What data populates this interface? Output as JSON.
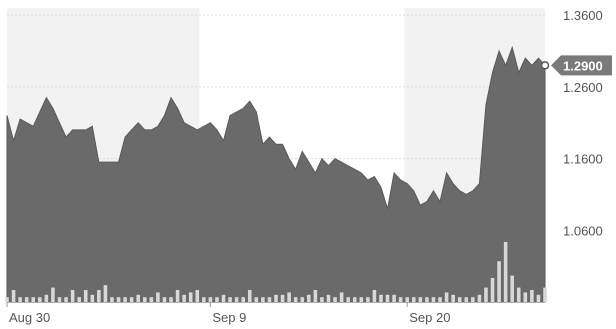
{
  "chart_data": {
    "type": "area",
    "title": "",
    "xlabel": "",
    "ylabel": "",
    "ylim": [
      0.96,
      1.37
    ],
    "y_ticks": [
      1.06,
      1.16,
      1.26,
      1.36
    ],
    "y_tick_labels": [
      "1.0600",
      "1.1600",
      "1.2600",
      "1.3600"
    ],
    "x_tick_labels": [
      "Aug 30",
      "Sep 9",
      "Sep 20"
    ],
    "grid": "horizontal",
    "y_axis_position": "right",
    "colors": {
      "area": "#6a6a6a",
      "shade": "#f2f2f2",
      "badge": "#7a7a7a",
      "grid": "#dcdcdc"
    },
    "last_value": 1.29,
    "last_value_label": "1.2900",
    "series": [
      {
        "values": [
          1.22,
          1.185,
          1.215,
          1.21,
          1.205,
          1.225,
          1.245,
          1.23,
          1.21,
          1.19,
          1.2,
          1.2,
          1.2,
          1.205,
          1.155,
          1.155,
          1.155,
          1.155,
          1.19,
          1.2,
          1.21,
          1.2,
          1.2,
          1.205,
          1.22,
          1.245,
          1.23,
          1.21,
          1.205,
          1.2,
          1.205,
          1.21,
          1.2,
          1.185,
          1.22,
          1.225,
          1.23,
          1.24,
          1.225,
          1.18,
          1.19,
          1.18,
          1.18,
          1.16,
          1.145,
          1.17,
          1.155,
          1.14,
          1.16,
          1.15,
          1.16,
          1.155,
          1.15,
          1.145,
          1.14,
          1.13,
          1.135,
          1.12,
          1.09,
          1.14,
          1.13,
          1.125,
          1.115,
          1.095,
          1.1,
          1.115,
          1.1,
          1.14,
          1.125,
          1.115,
          1.11,
          1.115,
          1.125,
          1.235,
          1.28,
          1.31,
          1.29,
          1.315,
          1.28,
          1.3,
          1.29,
          1.3,
          1.29
        ]
      }
    ],
    "volume": [
      0.02,
      0.05,
      0.02,
      0.02,
      0.02,
      0.02,
      0.03,
      0.06,
      0.02,
      0.02,
      0.05,
      0.02,
      0.05,
      0.03,
      0.05,
      0.07,
      0.02,
      0.02,
      0.02,
      0.02,
      0.03,
      0.02,
      0.02,
      0.04,
      0.02,
      0.02,
      0.05,
      0.03,
      0.04,
      0.05,
      0.02,
      0.02,
      0.02,
      0.03,
      0.02,
      0.02,
      0.02,
      0.05,
      0.02,
      0.02,
      0.02,
      0.03,
      0.03,
      0.04,
      0.02,
      0.02,
      0.03,
      0.05,
      0.02,
      0.03,
      0.02,
      0.04,
      0.02,
      0.02,
      0.02,
      0.02,
      0.05,
      0.03,
      0.03,
      0.03,
      0.02,
      0.02,
      0.02,
      0.02,
      0.02,
      0.02,
      0.02,
      0.04,
      0.03,
      0.02,
      0.02,
      0.02,
      0.03,
      0.06,
      0.1,
      0.17,
      0.25,
      0.11,
      0.06,
      0.04,
      0.05,
      0.03,
      0.06
    ]
  }
}
